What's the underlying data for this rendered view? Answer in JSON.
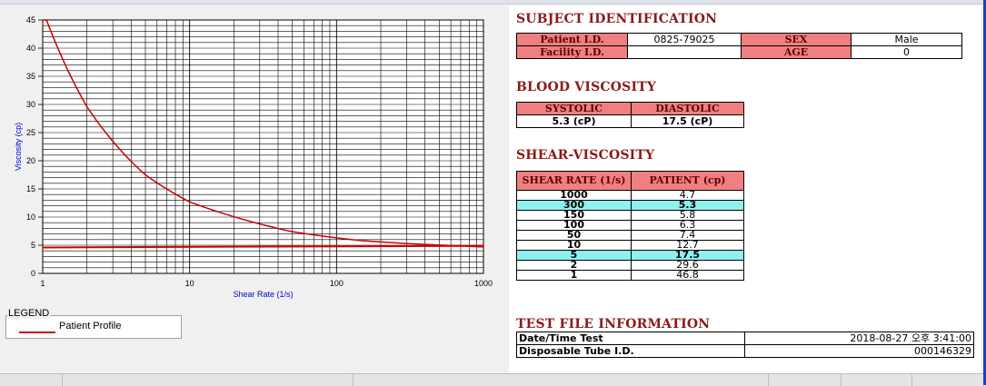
{
  "chart_data": {
    "type": "line",
    "xscale": "log",
    "xlim": [
      1,
      1000
    ],
    "ylim": [
      0,
      45
    ],
    "xlabel": "Shear Rate (1/s)",
    "ylabel": "Viscosity (cp)",
    "xticks": [
      1,
      10,
      100,
      1000
    ],
    "yticks": [
      0,
      5,
      10,
      15,
      20,
      25,
      30,
      35,
      40,
      45
    ],
    "grid": true,
    "series": [
      {
        "name": "Patient Profile",
        "color": "#cc0000",
        "x": [
          1,
          2,
          5,
          10,
          50,
          100,
          150,
          300,
          1000
        ],
        "y": [
          46.8,
          29.6,
          17.5,
          12.7,
          7.4,
          6.3,
          5.8,
          5.3,
          4.7
        ]
      }
    ],
    "reference_line": {
      "from": [
        1,
        4.6
      ],
      "to": [
        1000,
        4.9
      ],
      "color": "#cc0000"
    }
  },
  "legend": {
    "title": "LEGEND",
    "items": [
      {
        "label": "Patient Profile",
        "color": "#cc0000"
      }
    ]
  },
  "subject": {
    "title": "SUBJECT IDENTIFICATION",
    "patient_id_label": "Patient I.D.",
    "patient_id": "0825-79025",
    "facility_id_label": "Facility I.D.",
    "facility_id": "",
    "sex_label": "SEX",
    "sex": "Male",
    "age_label": "AGE",
    "age": "0"
  },
  "blood_viscosity": {
    "title": "BLOOD VISCOSITY",
    "systolic_label": "SYSTOLIC",
    "diastolic_label": "DIASTOLIC",
    "systolic": "5.3 (cP)",
    "diastolic": "17.5 (cP)"
  },
  "shear_viscosity": {
    "title": "SHEAR-VISCOSITY",
    "col_rate": "SHEAR RATE (1/s)",
    "col_patient": "PATIENT (cp)",
    "rows": [
      {
        "rate": "1000",
        "value": "4.7"
      },
      {
        "rate": "300",
        "value": "5.3"
      },
      {
        "rate": "150",
        "value": "5.8"
      },
      {
        "rate": "100",
        "value": "6.3"
      },
      {
        "rate": "50",
        "value": "7.4"
      },
      {
        "rate": "10",
        "value": "12.7"
      },
      {
        "rate": "5",
        "value": "17.5"
      },
      {
        "rate": "2",
        "value": "29.6"
      },
      {
        "rate": "1",
        "value": "46.8"
      }
    ]
  },
  "test_file": {
    "title": "TEST FILE INFORMATION",
    "datetime_label": "Date/Time Test",
    "datetime_value": "2018-08-27   오후 3:41:00",
    "tube_label": "Disposable Tube I.D.",
    "tube_value": "000146329"
  },
  "colors": {
    "header_bg": "#f08080",
    "highlight": "#8ff0f0",
    "title": "#8b1a1a",
    "curve": "#cc0000"
  }
}
